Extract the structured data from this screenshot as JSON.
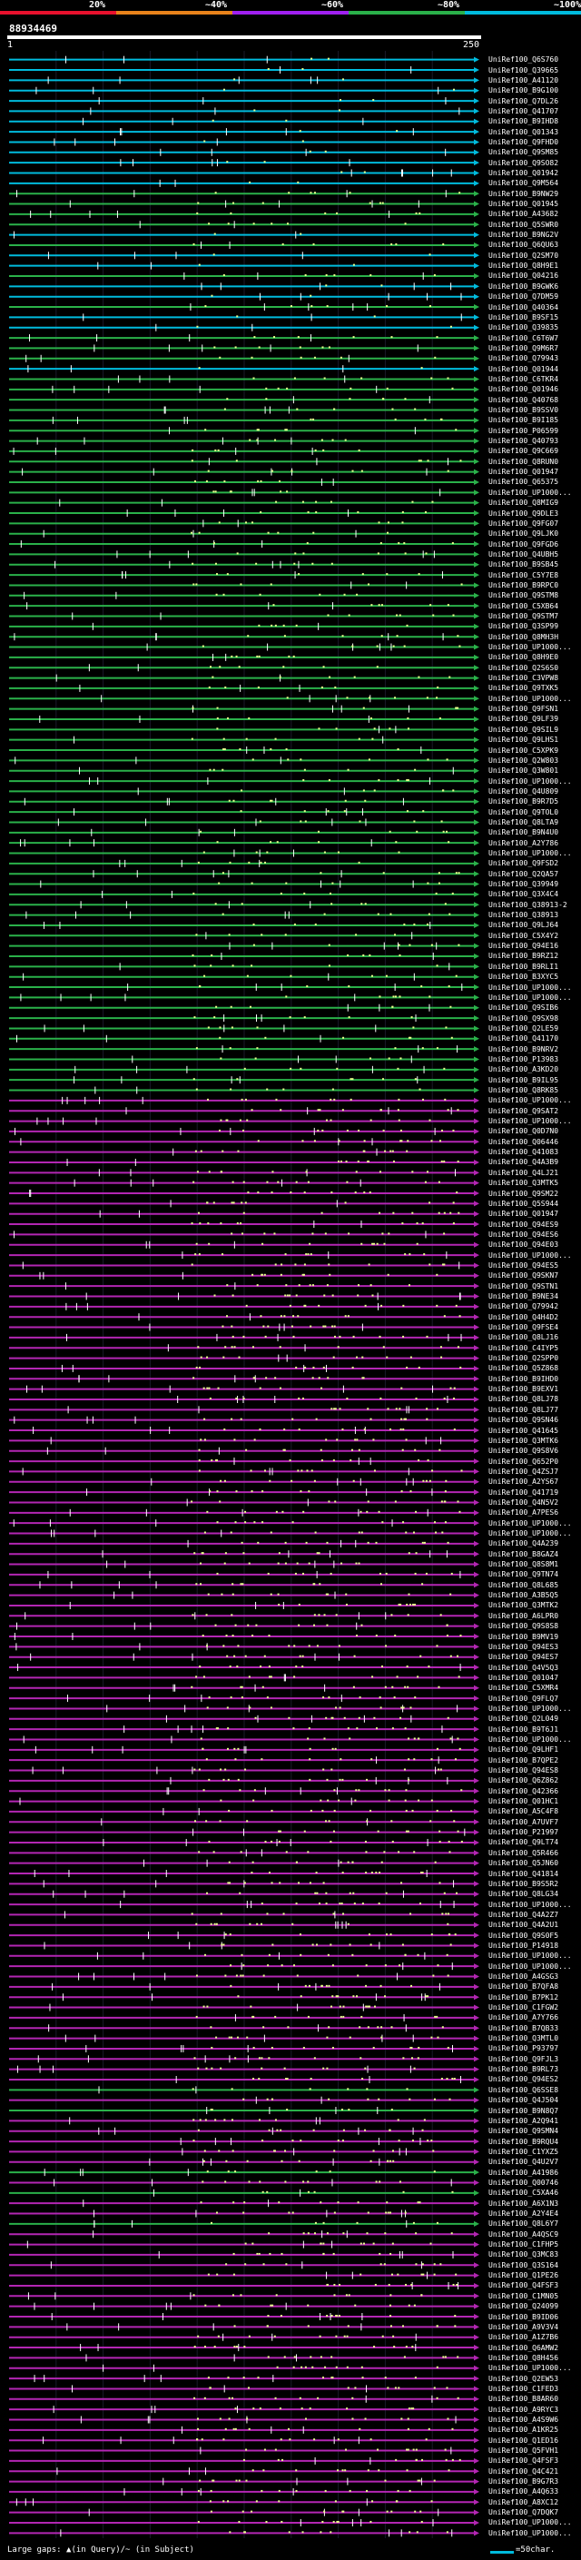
{
  "legend": {
    "labels": [
      "20%",
      "~40%",
      "~60%",
      "~80%",
      "~100%"
    ],
    "colors": [
      "#e8112d",
      "#e8821a",
      "#a020f0",
      "#2ab14a",
      "#00bbdd"
    ]
  },
  "query_id": "88934469",
  "scale": {
    "start": "1",
    "end": "250"
  },
  "colors": {
    "identity_100": "#00bbdd",
    "identity_80": "#2ab14a",
    "identity_60": "#b326b3",
    "gap_marker": "#ffffff",
    "match_dots": "#e8ff8c"
  },
  "chart_data": {
    "type": "table",
    "x_range": [
      1,
      250
    ],
    "hits": [
      {
        "id": "UniRef100_Q6S760",
        "identity": 100
      },
      {
        "id": "UniRef100_Q39665",
        "identity": 100
      },
      {
        "id": "UniRef100_A41120",
        "identity": 100
      },
      {
        "id": "UniRef100_B9G100",
        "identity": 100
      },
      {
        "id": "UniRef100_Q7DL26",
        "identity": 100
      },
      {
        "id": "UniRef100_Q41707",
        "identity": 100
      },
      {
        "id": "UniRef100_B9IHD8",
        "identity": 100
      },
      {
        "id": "UniRef100_Q01343",
        "identity": 100
      },
      {
        "id": "UniRef100_Q9FHD0",
        "identity": 100
      },
      {
        "id": "UniRef100_Q9SM85",
        "identity": 100
      },
      {
        "id": "UniRef100_Q9SO82",
        "identity": 100
      },
      {
        "id": "UniRef100_Q01942",
        "identity": 100
      },
      {
        "id": "UniRef100_Q9M564",
        "identity": 100
      },
      {
        "id": "UniRef100_B9NW29",
        "identity": 80
      },
      {
        "id": "UniRef100_Q01945",
        "identity": 80
      },
      {
        "id": "UniRef100_A43682",
        "identity": 80
      },
      {
        "id": "UniRef100_Q5SWR0",
        "identity": 80
      },
      {
        "id": "UniRef100_B9NG2V",
        "identity": 100
      },
      {
        "id": "UniRef100_Q6QU63",
        "identity": 80
      },
      {
        "id": "UniRef100_Q2SM70",
        "identity": 100
      },
      {
        "id": "UniRef100_Q8H9E1",
        "identity": 100
      },
      {
        "id": "UniRef100_Q04216",
        "identity": 80
      },
      {
        "id": "UniRef100_B9GWK6",
        "identity": 100
      },
      {
        "id": "UniRef100_Q7DM59",
        "identity": 100
      },
      {
        "id": "UniRef100_Q40364",
        "identity": 80
      },
      {
        "id": "UniRef100_B9SF15",
        "identity": 100
      },
      {
        "id": "UniRef100_Q39835",
        "identity": 100
      },
      {
        "id": "UniRef100_C6T6W7",
        "identity": 80
      },
      {
        "id": "UniRef100_Q9M6R7",
        "identity": 80
      },
      {
        "id": "UniRef100_Q79943",
        "identity": 80
      },
      {
        "id": "UniRef100_Q01944",
        "identity": 100
      },
      {
        "id": "UniRef100_C6TKR4",
        "identity": 80
      },
      {
        "id": "UniRef100_Q01946",
        "identity": 80
      },
      {
        "id": "UniRef100_Q40768",
        "identity": 80
      },
      {
        "id": "UniRef100_B9SSV0",
        "identity": 80
      },
      {
        "id": "UniRef100_B9I185",
        "identity": 80
      },
      {
        "id": "UniRef100_P06599",
        "identity": 80
      },
      {
        "id": "UniRef100_Q40793",
        "identity": 80
      },
      {
        "id": "UniRef100_Q9C669",
        "identity": 80
      },
      {
        "id": "UniRef100_Q8RUN0",
        "identity": 80
      },
      {
        "id": "UniRef100_Q01947",
        "identity": 80
      },
      {
        "id": "UniRef100_Q65375",
        "identity": 80
      },
      {
        "id": "UniRef100_UP1000...",
        "identity": 80
      },
      {
        "id": "UniRef100_Q8MIG9",
        "identity": 80
      },
      {
        "id": "UniRef100_Q9DLE3",
        "identity": 80
      },
      {
        "id": "UniRef100_Q9FG07",
        "identity": 80
      },
      {
        "id": "UniRef100_Q9LJK0",
        "identity": 80
      },
      {
        "id": "UniRef100_Q9FGD6",
        "identity": 80
      },
      {
        "id": "UniRef100_Q4UBH5",
        "identity": 80
      },
      {
        "id": "UniRef100_B9SB45",
        "identity": 80
      },
      {
        "id": "UniRef100_C5Y7E8",
        "identity": 80
      },
      {
        "id": "UniRef100_B9RPC0",
        "identity": 80
      },
      {
        "id": "UniRef100_Q9STM8",
        "identity": 80
      },
      {
        "id": "UniRef100_C5XB64",
        "identity": 80
      },
      {
        "id": "UniRef100_Q9STM7",
        "identity": 80
      },
      {
        "id": "UniRef100_Q3SP99",
        "identity": 80
      },
      {
        "id": "UniRef100_Q8MH3H",
        "identity": 80
      },
      {
        "id": "UniRef100_UP1000...",
        "identity": 80
      },
      {
        "id": "UniRef100_Q8H9E0",
        "identity": 80
      },
      {
        "id": "UniRef100_Q2S6S0",
        "identity": 80
      },
      {
        "id": "UniRef100_C3VPW8",
        "identity": 80
      },
      {
        "id": "UniRef100_Q9TXK5",
        "identity": 80
      },
      {
        "id": "UniRef100_UP1000...",
        "identity": 80
      },
      {
        "id": "UniRef100_Q9FSN1",
        "identity": 80
      },
      {
        "id": "UniRef100_Q9LF39",
        "identity": 80
      },
      {
        "id": "UniRef100_Q9SIL9",
        "identity": 80
      },
      {
        "id": "UniRef100_Q9LHS1",
        "identity": 80
      },
      {
        "id": "UniRef100_C5XPK9",
        "identity": 80
      },
      {
        "id": "UniRef100_Q2W803",
        "identity": 80
      },
      {
        "id": "UniRef100_Q3W801",
        "identity": 80
      },
      {
        "id": "UniRef100_UP1000...",
        "identity": 80
      },
      {
        "id": "UniRef100_Q4U809",
        "identity": 80
      },
      {
        "id": "UniRef100_B9R7D5",
        "identity": 80
      },
      {
        "id": "UniRef100_Q9TOL0",
        "identity": 80
      },
      {
        "id": "UniRef100_Q8LTA9",
        "identity": 80
      },
      {
        "id": "UniRef100_B9N4U0",
        "identity": 80
      },
      {
        "id": "UniRef100_A2Y786",
        "identity": 80
      },
      {
        "id": "UniRef100_UP1000...",
        "identity": 80
      },
      {
        "id": "UniRef100_Q9FSD2",
        "identity": 80
      },
      {
        "id": "UniRef100_Q2QA57",
        "identity": 80
      },
      {
        "id": "UniRef100_Q39949",
        "identity": 80
      },
      {
        "id": "UniRef100_Q3X4C4",
        "identity": 80
      },
      {
        "id": "UniRef100_Q38913-2",
        "identity": 80
      },
      {
        "id": "UniRef100_Q38913",
        "identity": 80
      },
      {
        "id": "UniRef100_Q9LJ64",
        "identity": 80
      },
      {
        "id": "UniRef100_C5X4Y2",
        "identity": 80
      },
      {
        "id": "UniRef100_Q94E16",
        "identity": 80
      },
      {
        "id": "UniRef100_B9RZ12",
        "identity": 80
      },
      {
        "id": "UniRef100_B9RLI1",
        "identity": 80
      },
      {
        "id": "UniRef100_B3XYC5",
        "identity": 80
      },
      {
        "id": "UniRef100_UP1000...",
        "identity": 80
      },
      {
        "id": "UniRef100_UP1000...",
        "identity": 80
      },
      {
        "id": "UniRef100_Q9SIB6",
        "identity": 80
      },
      {
        "id": "UniRef100_Q9SX98",
        "identity": 80
      },
      {
        "id": "UniRef100_Q2LE59",
        "identity": 80
      },
      {
        "id": "UniRef100_Q41170",
        "identity": 80
      },
      {
        "id": "UniRef100_B9NRV2",
        "identity": 80
      },
      {
        "id": "UniRef100_P13983",
        "identity": 80
      },
      {
        "id": "UniRef100_A3KD20",
        "identity": 80
      },
      {
        "id": "UniRef100_B9IL95",
        "identity": 80
      },
      {
        "id": "UniRef100_Q8RK85",
        "identity": 80
      },
      {
        "id": "UniRef100_UP1000...",
        "identity": 60
      },
      {
        "id": "UniRef100_Q9SAT2",
        "identity": 60
      },
      {
        "id": "UniRef100_UP1000...",
        "identity": 60
      },
      {
        "id": "UniRef100_Q0D7N0",
        "identity": 60
      },
      {
        "id": "UniRef100_Q06446",
        "identity": 60
      },
      {
        "id": "UniRef100_Q41083",
        "identity": 60
      },
      {
        "id": "UniRef100_Q4A3B9",
        "identity": 60
      },
      {
        "id": "UniRef100_Q4LJ21",
        "identity": 60
      },
      {
        "id": "UniRef100_Q3MTK5",
        "identity": 60
      },
      {
        "id": "UniRef100_Q9SM22",
        "identity": 60
      },
      {
        "id": "UniRef100_Q5S944",
        "identity": 60
      },
      {
        "id": "UniRef100_Q01947",
        "identity": 60
      },
      {
        "id": "UniRef100_Q94ES9",
        "identity": 60
      },
      {
        "id": "UniRef100_Q94ES6",
        "identity": 60
      },
      {
        "id": "UniRef100_Q94E03",
        "identity": 60
      },
      {
        "id": "UniRef100_UP1000...",
        "identity": 60
      },
      {
        "id": "UniRef100_Q94ES5",
        "identity": 60
      },
      {
        "id": "UniRef100_Q9SKN7",
        "identity": 60
      },
      {
        "id": "UniRef100_Q9STN1",
        "identity": 60
      },
      {
        "id": "UniRef100_B9NE34",
        "identity": 60
      },
      {
        "id": "UniRef100_Q79942",
        "identity": 60
      },
      {
        "id": "UniRef100_Q4H4D2",
        "identity": 60
      },
      {
        "id": "UniRef100_Q9FSE4",
        "identity": 60
      },
      {
        "id": "UniRef100_Q8LJ16",
        "identity": 60
      },
      {
        "id": "UniRef100_C4IYP5",
        "identity": 60
      },
      {
        "id": "UniRef100_Q2SPP0",
        "identity": 60
      },
      {
        "id": "UniRef100_Q5Z868",
        "identity": 60
      },
      {
        "id": "UniRef100_B9IHD0",
        "identity": 60
      },
      {
        "id": "UniRef100_B9EXV1",
        "identity": 60
      },
      {
        "id": "UniRef100_Q8LJ78",
        "identity": 60
      },
      {
        "id": "UniRef100_Q8LJ77",
        "identity": 60
      },
      {
        "id": "UniRef100_Q9SN46",
        "identity": 60
      },
      {
        "id": "UniRef100_Q41645",
        "identity": 60
      },
      {
        "id": "UniRef100_Q3MTK6",
        "identity": 60
      },
      {
        "id": "UniRef100_Q9S8V6",
        "identity": 60
      },
      {
        "id": "UniRef100_Q652P0",
        "identity": 60
      },
      {
        "id": "UniRef100_Q4ZSJ7",
        "identity": 60
      },
      {
        "id": "UniRef100_A2YS67",
        "identity": 60
      },
      {
        "id": "UniRef100_Q41719",
        "identity": 60
      },
      {
        "id": "UniRef100_Q4N5V2",
        "identity": 60
      },
      {
        "id": "UniRef100_A7PES6",
        "identity": 60
      },
      {
        "id": "UniRef100_UP1000...",
        "identity": 60
      },
      {
        "id": "UniRef100_UP1000...",
        "identity": 60
      },
      {
        "id": "UniRef100_Q4A239",
        "identity": 60
      },
      {
        "id": "UniRef100_B8GAZ4",
        "identity": 60
      },
      {
        "id": "UniRef100_Q8S8M1",
        "identity": 60
      },
      {
        "id": "UniRef100_Q9TN74",
        "identity": 60
      },
      {
        "id": "UniRef100_Q8L685",
        "identity": 60
      },
      {
        "id": "UniRef100_A3B5Q5",
        "identity": 60
      },
      {
        "id": "UniRef100_Q3MTK2",
        "identity": 60
      },
      {
        "id": "UniRef100_A6LPR0",
        "identity": 60
      },
      {
        "id": "UniRef100_Q9S8S8",
        "identity": 60
      },
      {
        "id": "UniRef100_B9MV19",
        "identity": 60
      },
      {
        "id": "UniRef100_Q94ES3",
        "identity": 60
      },
      {
        "id": "UniRef100_Q94ES7",
        "identity": 60
      },
      {
        "id": "UniRef100_Q4V5Q3",
        "identity": 60
      },
      {
        "id": "UniRef100_Q01047",
        "identity": 60
      },
      {
        "id": "UniRef100_C5XMR4",
        "identity": 60
      },
      {
        "id": "UniRef100_Q9FLQ7",
        "identity": 60
      },
      {
        "id": "UniRef100_UP1000...",
        "identity": 60
      },
      {
        "id": "UniRef100_Q2L049",
        "identity": 60
      },
      {
        "id": "UniRef100_B9T6J1",
        "identity": 60
      },
      {
        "id": "UniRef100_UP1000...",
        "identity": 60
      },
      {
        "id": "UniRef100_Q9LHF1",
        "identity": 60
      },
      {
        "id": "UniRef100_B7QPE2",
        "identity": 60
      },
      {
        "id": "UniRef100_Q94ES8",
        "identity": 60
      },
      {
        "id": "UniRef100_Q6Z862",
        "identity": 60
      },
      {
        "id": "UniRef100_Q42366",
        "identity": 60
      },
      {
        "id": "UniRef100_Q01HC1",
        "identity": 60
      },
      {
        "id": "UniRef100_A5C4F8",
        "identity": 60
      },
      {
        "id": "UniRef100_A7UVF7",
        "identity": 60
      },
      {
        "id": "UniRef100_P21997",
        "identity": 60
      },
      {
        "id": "UniRef100_Q9LT74",
        "identity": 60
      },
      {
        "id": "UniRef100_Q5R466",
        "identity": 60
      },
      {
        "id": "UniRef100_Q5JN60",
        "identity": 60
      },
      {
        "id": "UniRef100_Q41814",
        "identity": 60
      },
      {
        "id": "UniRef100_B9S5R2",
        "identity": 60
      },
      {
        "id": "UniRef100_Q8LG34",
        "identity": 60
      },
      {
        "id": "UniRef100_UP1000...",
        "identity": 60
      },
      {
        "id": "UniRef100_Q4A2Z7",
        "identity": 60
      },
      {
        "id": "UniRef100_Q4A2U1",
        "identity": 60
      },
      {
        "id": "UniRef100_Q9S0F5",
        "identity": 60
      },
      {
        "id": "UniRef100_P14918",
        "identity": 60
      },
      {
        "id": "UniRef100_UP1000...",
        "identity": 60
      },
      {
        "id": "UniRef100_UP1000...",
        "identity": 60
      },
      {
        "id": "UniRef100_A4GSG3",
        "identity": 60
      },
      {
        "id": "UniRef100_B7QFA8",
        "identity": 60
      },
      {
        "id": "UniRef100_B7PK12",
        "identity": 60
      },
      {
        "id": "UniRef100_C1FGW2",
        "identity": 60
      },
      {
        "id": "UniRef100_A7Y766",
        "identity": 60
      },
      {
        "id": "UniRef100_B7QB33",
        "identity": 60
      },
      {
        "id": "UniRef100_Q3MTL0",
        "identity": 60
      },
      {
        "id": "UniRef100_P93797",
        "identity": 60
      },
      {
        "id": "UniRef100_Q9FJL3",
        "identity": 60
      },
      {
        "id": "UniRef100_B9RL73",
        "identity": 60
      },
      {
        "id": "UniRef100_Q94ES2",
        "identity": 60
      },
      {
        "id": "UniRef100_Q6SSE8",
        "identity": 80
      },
      {
        "id": "UniRef100_Q4J504",
        "identity": 60
      },
      {
        "id": "UniRef100_B9N8Q7",
        "identity": 80
      },
      {
        "id": "UniRef100_A2Q941",
        "identity": 60
      },
      {
        "id": "UniRef100_Q9SMN4",
        "identity": 60
      },
      {
        "id": "UniRef100_B9RQU4",
        "identity": 60
      },
      {
        "id": "UniRef100_C1YXZ5",
        "identity": 60
      },
      {
        "id": "UniRef100_Q4U2V7",
        "identity": 60
      },
      {
        "id": "UniRef100_A41986",
        "identity": 80
      },
      {
        "id": "UniRef100_Q00746",
        "identity": 60
      },
      {
        "id": "UniRef100_C5XA46",
        "identity": 80
      },
      {
        "id": "UniRef100_A6X1N3",
        "identity": 60
      },
      {
        "id": "UniRef100_A2Y4E4",
        "identity": 60
      },
      {
        "id": "UniRef100_Q8L6Y7",
        "identity": 80
      },
      {
        "id": "UniRef100_A4QSC9",
        "identity": 60
      },
      {
        "id": "UniRef100_C1FHP5",
        "identity": 60
      },
      {
        "id": "UniRef100_Q3MC83",
        "identity": 60
      },
      {
        "id": "UniRef100_Q3S164",
        "identity": 60
      },
      {
        "id": "UniRef100_Q1PE26",
        "identity": 60
      },
      {
        "id": "UniRef100_Q4FSF3",
        "identity": 60
      },
      {
        "id": "UniRef100_C1MN05",
        "identity": 60
      },
      {
        "id": "UniRef100_Q24099",
        "identity": 60
      },
      {
        "id": "UniRef100_B9ID06",
        "identity": 60
      },
      {
        "id": "UniRef100_A9V3V4",
        "identity": 60
      },
      {
        "id": "UniRef100_A1Z7B6",
        "identity": 60
      },
      {
        "id": "UniRef100_Q6AMW2",
        "identity": 60
      },
      {
        "id": "UniRef100_Q8H456",
        "identity": 60
      },
      {
        "id": "UniRef100_UP1000...",
        "identity": 60
      },
      {
        "id": "UniRef100_Q2EW53",
        "identity": 60
      },
      {
        "id": "UniRef100_C1FED3",
        "identity": 60
      },
      {
        "id": "UniRef100_B8AR60",
        "identity": 60
      },
      {
        "id": "UniRef100_A9RYC3",
        "identity": 60
      },
      {
        "id": "UniRef100_A4S9W6",
        "identity": 60
      },
      {
        "id": "UniRef100_A1KR25",
        "identity": 60
      },
      {
        "id": "UniRef100_Q1ED16",
        "identity": 60
      },
      {
        "id": "UniRef100_Q5FVH1",
        "identity": 60
      },
      {
        "id": "UniRef100_Q4FSF3",
        "identity": 60
      },
      {
        "id": "UniRef100_Q4C421",
        "identity": 60
      },
      {
        "id": "UniRef100_B9G7R3",
        "identity": 60
      },
      {
        "id": "UniRef100_A4Q633",
        "identity": 60
      },
      {
        "id": "UniRef100_A8XC12",
        "identity": 60
      },
      {
        "id": "UniRef100_Q7DQK7",
        "identity": 60
      },
      {
        "id": "UniRef100_UP1000...",
        "identity": 60
      },
      {
        "id": "UniRef100_UP1000...",
        "identity": 60
      }
    ]
  },
  "footer": {
    "text": "Large gaps: ▲(in Query)/~ (in Subject)",
    "scale_text": "=50char."
  }
}
